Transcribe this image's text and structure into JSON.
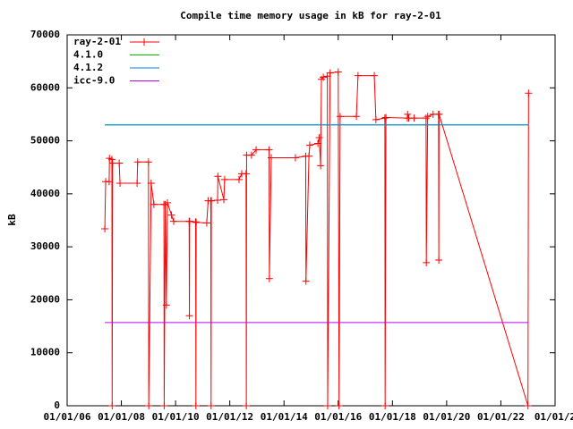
{
  "chart_data": {
    "type": "line",
    "title": "Compile time memory usage in kB for ray-2-01",
    "y_label": "kB",
    "xlim": [
      2006,
      2024
    ],
    "ylim": [
      0,
      70000
    ],
    "xticks": [
      {
        "value": 2006,
        "label": "01/01/06"
      },
      {
        "value": 2008,
        "label": "01/01/08"
      },
      {
        "value": 2010,
        "label": "01/01/10"
      },
      {
        "value": 2012,
        "label": "01/01/12"
      },
      {
        "value": 2014,
        "label": "01/01/14"
      },
      {
        "value": 2016,
        "label": "01/01/16"
      },
      {
        "value": 2018,
        "label": "01/01/18"
      },
      {
        "value": 2020,
        "label": "01/01/20"
      },
      {
        "value": 2022,
        "label": "01/01/22"
      },
      {
        "value": 2024,
        "label": "01/01/2"
      }
    ],
    "yticks": [
      0,
      10000,
      20000,
      30000,
      40000,
      50000,
      60000,
      70000
    ],
    "legend": "top-left",
    "grid": false,
    "series": [
      {
        "name": "ray-2-01",
        "color": "#ff0000",
        "marker": "+",
        "x": [
          2007.39,
          2007.42,
          2007.55,
          2007.56,
          2007.65,
          2007.66,
          2007.68,
          2007.92,
          2007.95,
          2008.58,
          2008.6,
          2009.0,
          2009.01,
          2009.1,
          2009.2,
          2009.57,
          2009.58,
          2009.62,
          2009.66,
          2009.7,
          2009.85,
          2009.93,
          2010.5,
          2010.51,
          2010.52,
          2010.74,
          2010.75,
          2010.76,
          2011.15,
          2011.2,
          2011.3,
          2011.31,
          2011.32,
          2011.55,
          2011.56,
          2011.78,
          2011.81,
          2012.34,
          2012.44,
          2012.6,
          2012.61,
          2012.62,
          2012.8,
          2012.97,
          2013.45,
          2013.46,
          2013.53,
          2014.42,
          2014.8,
          2014.81,
          2014.92,
          2014.95,
          2015.25,
          2015.3,
          2015.35,
          2015.38,
          2015.45,
          2015.6,
          2015.61,
          2015.7,
          2016.0,
          2016.03,
          2016.07,
          2016.67,
          2016.73,
          2017.33,
          2017.39,
          2017.72,
          2017.73,
          2017.76,
          2018.55,
          2018.56,
          2018.6,
          2018.8,
          2019.24,
          2019.25,
          2019.3,
          2019.5,
          2019.7,
          2019.71,
          2019.72,
          2023.0,
          2023.02
        ],
        "values": [
          33400,
          42300,
          42300,
          46700,
          46500,
          0,
          45800,
          45800,
          42000,
          42000,
          46000,
          46000,
          0,
          42000,
          38000,
          38000,
          0,
          38000,
          19000,
          38300,
          36000,
          34800,
          34800,
          17000,
          34800,
          34700,
          0,
          34600,
          34500,
          38700,
          38700,
          0,
          38700,
          38800,
          43300,
          38900,
          42700,
          42700,
          43800,
          43800,
          0,
          47300,
          47300,
          48300,
          48300,
          24000,
          46800,
          46800,
          47100,
          23500,
          47100,
          49200,
          49500,
          50600,
          45300,
          61600,
          62000,
          62200,
          0,
          62800,
          63000,
          0,
          54600,
          54600,
          62300,
          62300,
          54000,
          54300,
          0,
          54400,
          54300,
          55000,
          54300,
          54300,
          54300,
          27000,
          54600,
          55000,
          55000,
          27500,
          55000,
          0,
          59000
        ]
      },
      {
        "name": "4.1.0",
        "color": "#00c000",
        "x": [
          2007.39,
          2023.02
        ],
        "values": [
          53000,
          53000
        ]
      },
      {
        "name": "4.1.2",
        "color": "#0080ff",
        "x": [
          2007.39,
          2023.02
        ],
        "values": [
          53000,
          53000
        ]
      },
      {
        "name": "icc-9.0",
        "color": "#c000ff",
        "x": [
          2007.39,
          2023.02
        ],
        "values": [
          15700,
          15700
        ]
      }
    ]
  }
}
